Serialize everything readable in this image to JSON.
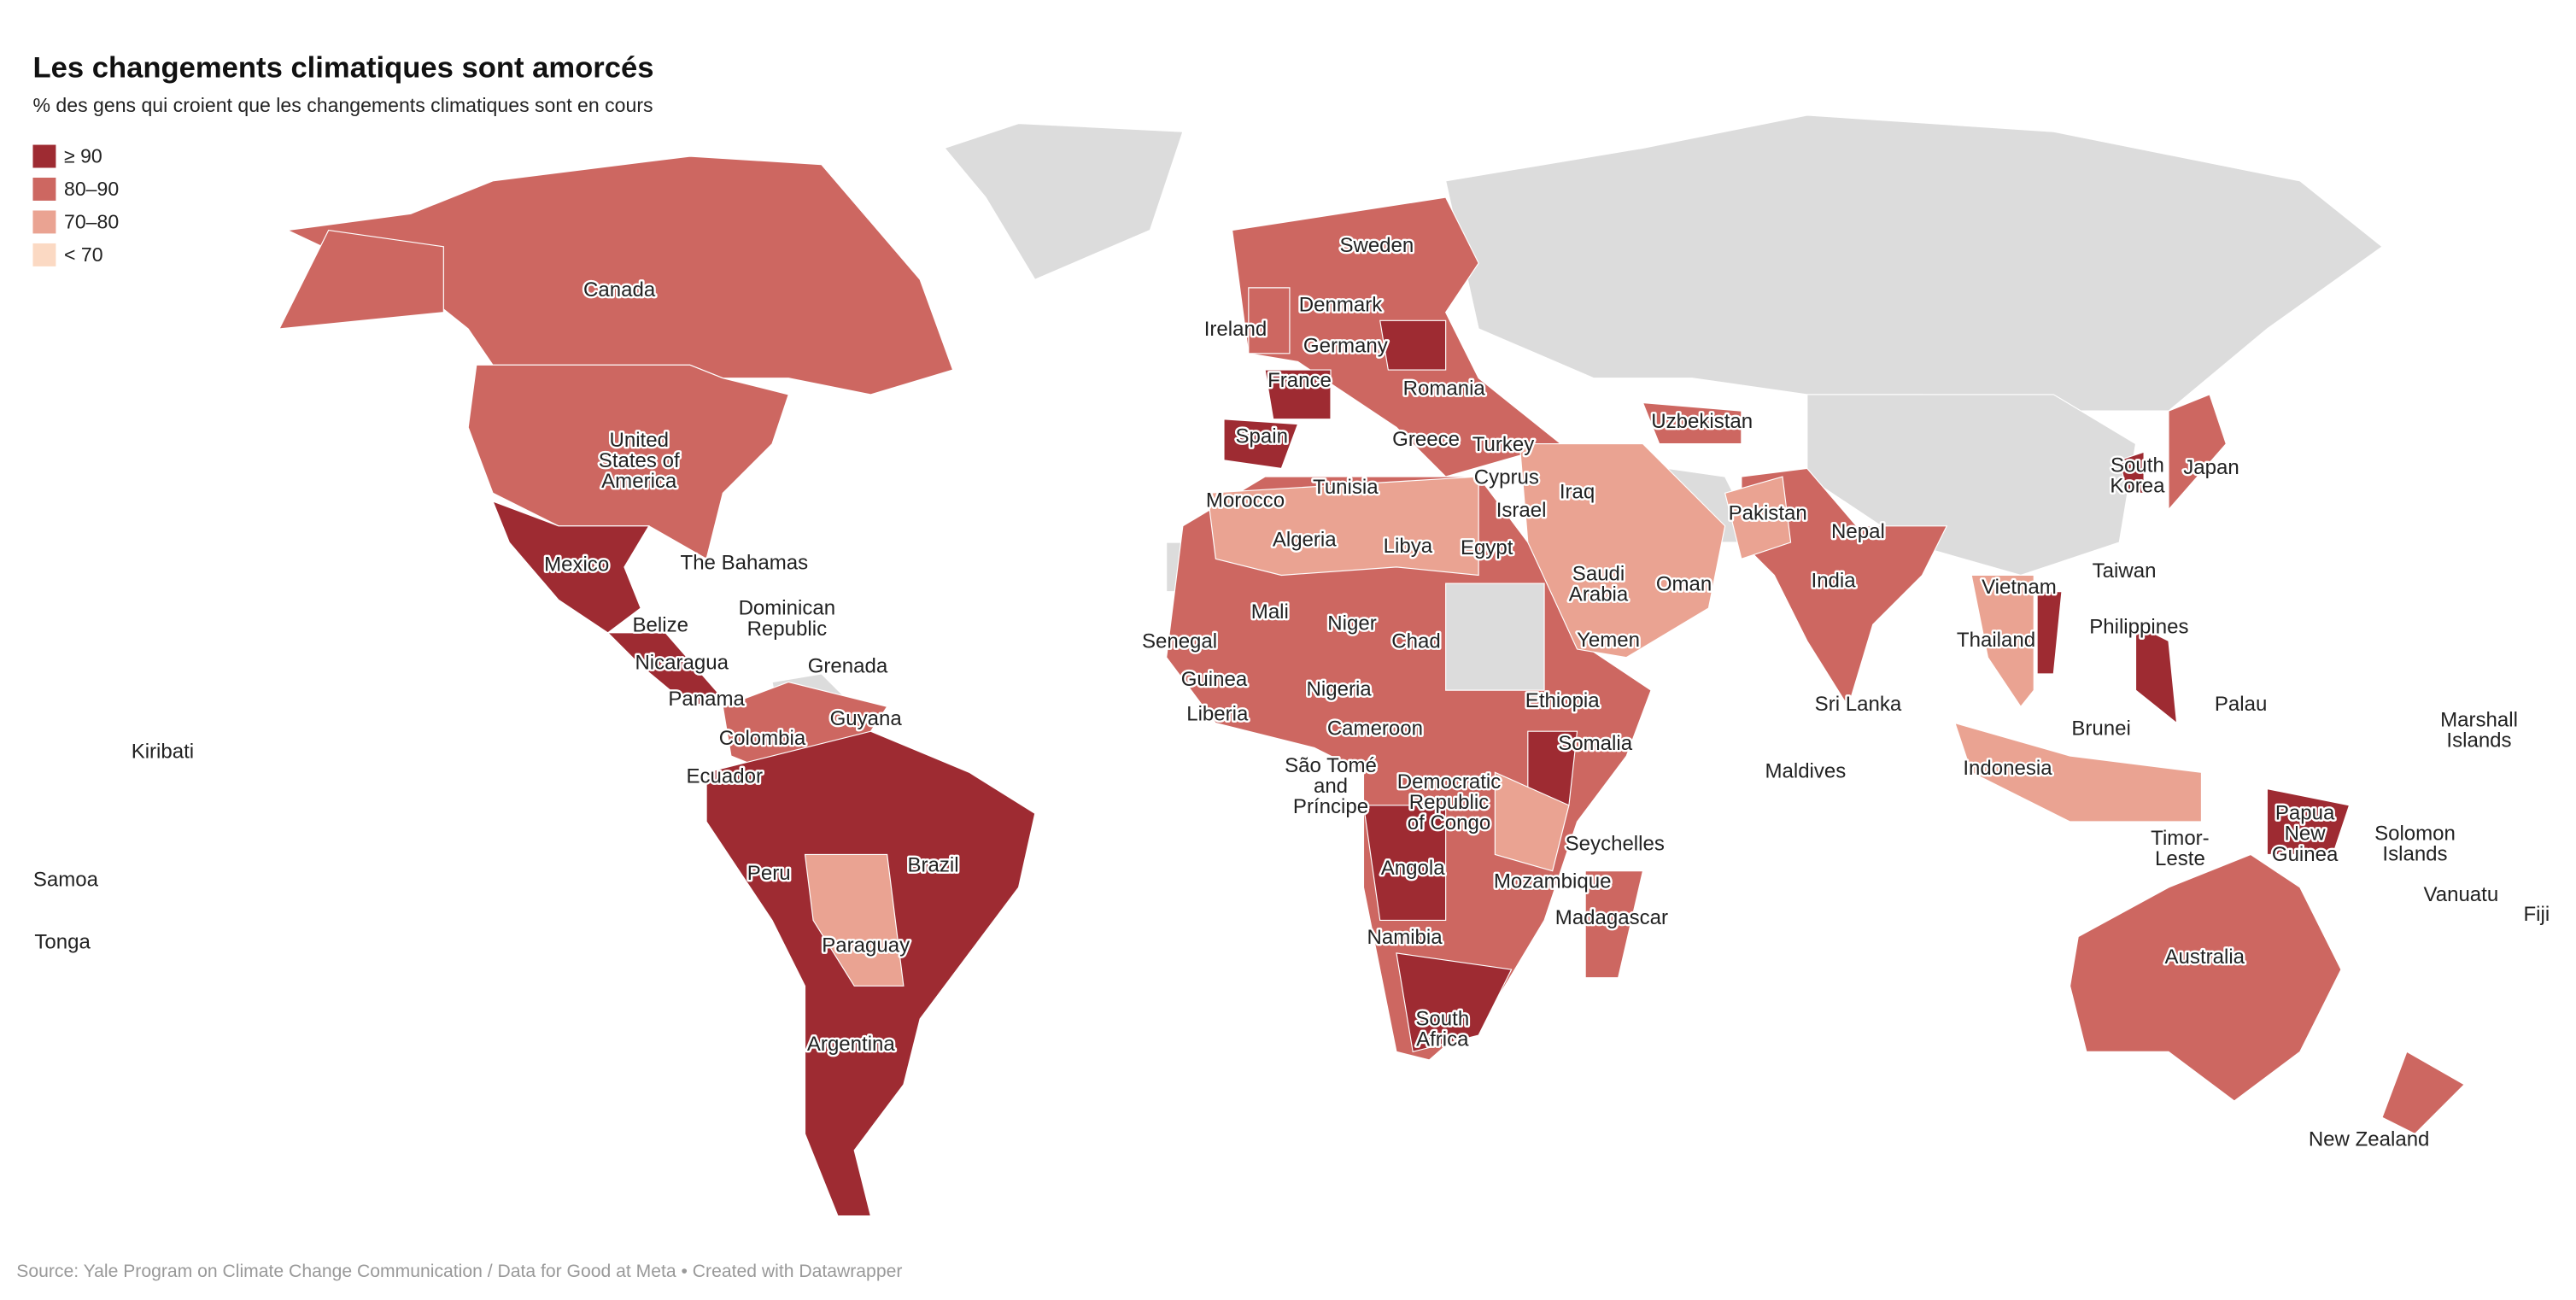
{
  "chart_data": {
    "type": "choropleth",
    "title": "Les changements climatiques sont amorcés",
    "subtitle": "% des gens qui croient que les changements climatiques sont en cours",
    "legend": [
      {
        "label": "≥ 90",
        "color": "#9e2b32"
      },
      {
        "label": "80–90",
        "color": "#cd6761"
      },
      {
        "label": "70–80",
        "color": "#eaa392"
      },
      {
        "label": "< 70",
        "color": "#fbd9c3"
      }
    ],
    "no_data_color": "#dcdcdc",
    "labels": [
      [
        "Canada"
      ],
      [
        "United",
        "States of",
        "America"
      ],
      [
        "Mexico"
      ],
      [
        "The Bahamas"
      ],
      [
        "Dominican",
        "Republic"
      ],
      [
        "Belize"
      ],
      [
        "Nicaragua"
      ],
      [
        "Panama"
      ],
      [
        "Grenada"
      ],
      [
        "Guyana"
      ],
      [
        "Colombia"
      ],
      [
        "Ecuador"
      ],
      [
        "Peru"
      ],
      [
        "Brazil"
      ],
      [
        "Paraguay"
      ],
      [
        "Argentina"
      ],
      [
        "Kiribati"
      ],
      [
        "Samoa"
      ],
      [
        "Tonga"
      ],
      [
        "Sweden"
      ],
      [
        "Denmark"
      ],
      [
        "Ireland"
      ],
      [
        "Germany"
      ],
      [
        "France"
      ],
      [
        "Romania"
      ],
      [
        "Spain"
      ],
      [
        "Greece"
      ],
      [
        "Turkey"
      ],
      [
        "Cyprus"
      ],
      [
        "Uzbekistan"
      ],
      [
        "Morocco"
      ],
      [
        "Tunisia"
      ],
      [
        "Iraq"
      ],
      [
        "Israel"
      ],
      [
        "Algeria"
      ],
      [
        "Libya"
      ],
      [
        "Egypt"
      ],
      [
        "Saudi",
        "Arabia"
      ],
      [
        "Oman"
      ],
      [
        "Pakistan"
      ],
      [
        "Nepal"
      ],
      [
        "India"
      ],
      [
        "Mali"
      ],
      [
        "Niger"
      ],
      [
        "Chad"
      ],
      [
        "Senegal"
      ],
      [
        "Yemen"
      ],
      [
        "Guinea"
      ],
      [
        "Nigeria"
      ],
      [
        "Liberia"
      ],
      [
        "Ethiopia"
      ],
      [
        "Cameroon"
      ],
      [
        "Somalia"
      ],
      [
        "São Tomé",
        "and",
        "Príncipe"
      ],
      [
        "Democratic",
        "Republic",
        "of Congo"
      ],
      [
        "Seychelles"
      ],
      [
        "Angola"
      ],
      [
        "Mozambique"
      ],
      [
        "Madagascar"
      ],
      [
        "Namibia"
      ],
      [
        "South",
        "Africa"
      ],
      [
        "Vietnam"
      ],
      [
        "Thailand"
      ],
      [
        "Philippines"
      ],
      [
        "South",
        "Korea"
      ],
      [
        "Japan"
      ],
      [
        "Taiwan"
      ],
      [
        "Sri Lanka"
      ],
      [
        "Maldives"
      ],
      [
        "Brunei"
      ],
      [
        "Indonesia"
      ],
      [
        "Palau"
      ],
      [
        "Marshall",
        "Islands"
      ],
      [
        "Timor-",
        "Leste"
      ],
      [
        "Papua",
        "New",
        "Guinea"
      ],
      [
        "Solomon",
        "Islands"
      ],
      [
        "Vanuatu"
      ],
      [
        "Fiji"
      ],
      [
        "Australia"
      ],
      [
        "New Zealand"
      ]
    ],
    "source": "Source: Yale Program on Climate Change Communication / Data for Good at Meta • Created with Datawrapper"
  }
}
